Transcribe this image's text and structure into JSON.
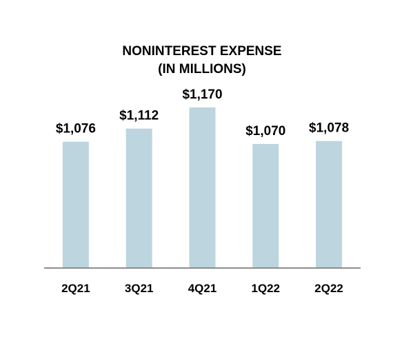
{
  "chart_data": {
    "type": "bar",
    "title_lines": [
      "NONINTEREST EXPENSE",
      "(IN MILLIONS)"
    ],
    "categories": [
      "2Q21",
      "3Q21",
      "4Q21",
      "1Q22",
      "2Q22"
    ],
    "values": [
      1076,
      1112,
      1170,
      1070,
      1078
    ],
    "value_labels": [
      "$1,076",
      "$1,112",
      "$1,170",
      "$1,070",
      "$1,078"
    ],
    "bar_color": "#bcd5df",
    "axis_color": "#8c8c8c",
    "grid": false,
    "legend": "none"
  }
}
